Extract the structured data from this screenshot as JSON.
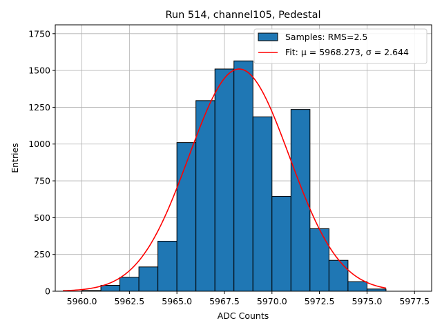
{
  "chart_data": {
    "type": "bar",
    "title": "Run 514, channel105, Pedestal",
    "xlabel": "ADC Counts",
    "ylabel": "Entries",
    "xlim": [
      5958.6,
      5978.4
    ],
    "ylim": [
      0,
      1810
    ],
    "grid": true,
    "legend_placement": "top-right",
    "xticks": [
      5960.0,
      5962.5,
      5965.0,
      5967.5,
      5970.0,
      5972.5,
      5975.0,
      5977.5
    ],
    "xtick_labels": [
      "5960.0",
      "5962.5",
      "5965.0",
      "5967.5",
      "5970.0",
      "5972.5",
      "5975.0",
      "5977.5"
    ],
    "yticks": [
      0,
      250,
      500,
      750,
      1000,
      1250,
      1500,
      1750
    ],
    "ytick_labels": [
      "0",
      "250",
      "500",
      "750",
      "1000",
      "1250",
      "1500",
      "1750"
    ],
    "histogram": {
      "name": "Samples: RMS=2.5",
      "bin_edges": [
        5960,
        5961,
        5962,
        5963,
        5964,
        5965,
        5966,
        5967,
        5968,
        5969,
        5970,
        5971,
        5972,
        5973,
        5974,
        5975,
        5976
      ],
      "counts": [
        5,
        40,
        95,
        165,
        340,
        1010,
        1295,
        1510,
        1565,
        1185,
        645,
        1235,
        425,
        210,
        65,
        15
      ],
      "color": "#1f77b4",
      "edge_color": "#000000"
    },
    "fit": {
      "name": "Fit: μ = 5968.273, σ = 2.644",
      "type": "gaussian",
      "mu": 5968.273,
      "sigma": 2.644,
      "amplitude": 1510,
      "x_range": [
        5959.0,
        5976.0
      ],
      "color": "#ff0000"
    }
  }
}
